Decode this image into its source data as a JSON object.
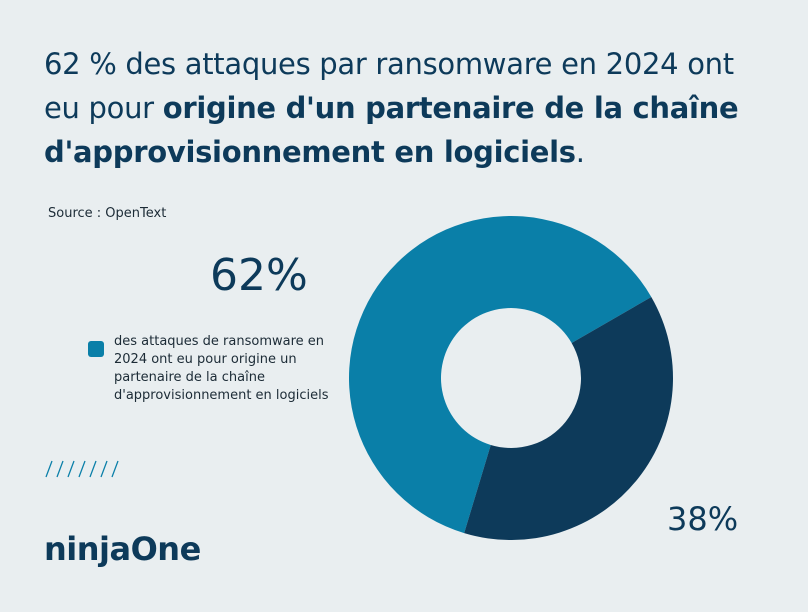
{
  "title_parts": [
    "62 % des attaques par ransomware en 2024 ont eu pour ",
    "origine d'un partenaire de la chaîne d'approvisionnement en logiciels",
    "."
  ],
  "source": "Source : OpenText",
  "logo": "ninjaOne",
  "chart_data": {
    "type": "pie",
    "donut": true,
    "categories": [
      "des attaques de ransomware en 2024 ont eu pour origine un partenaire de la chaîne d'approvisionnement en logiciels",
      null
    ],
    "values": [
      62,
      38
    ],
    "value_labels": [
      "62%",
      "38%"
    ],
    "colors": [
      "#0a7fa8",
      "#0d3a5a"
    ]
  }
}
